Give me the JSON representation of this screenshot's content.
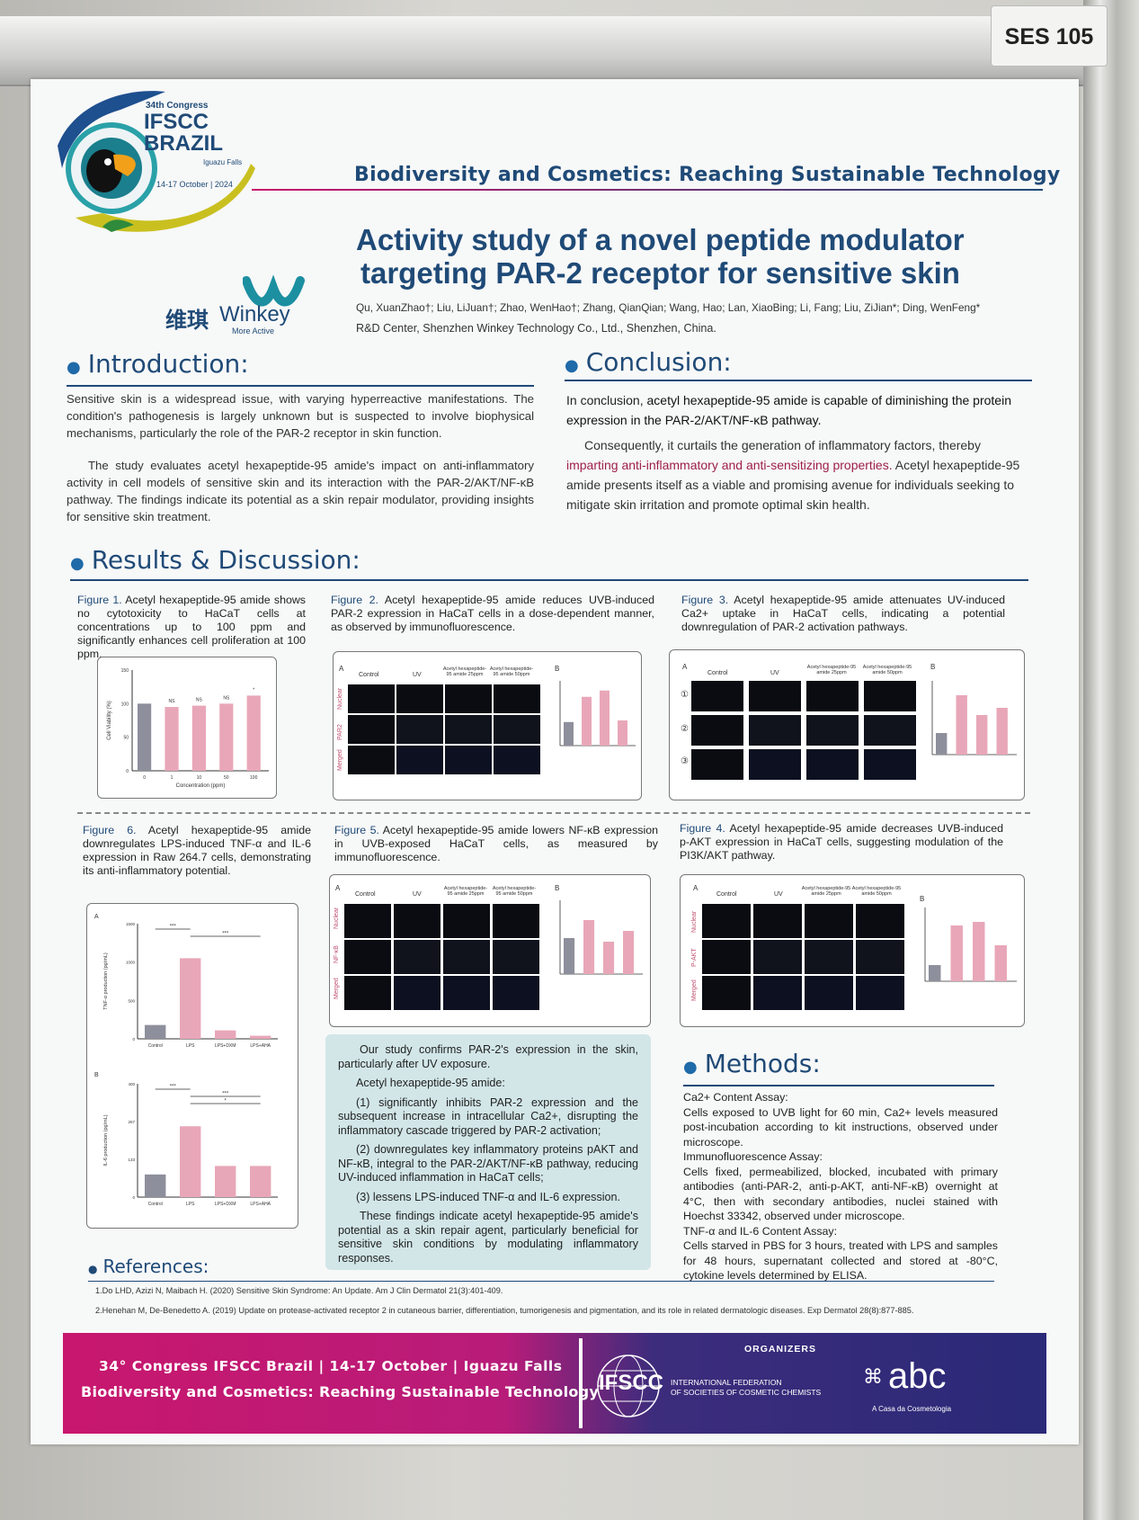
{
  "booth": {
    "tag": "SES 105"
  },
  "logo": {
    "congress": "34th Congress",
    "ifscc": "IFSCC",
    "brazil": "BRAZIL",
    "place": "Iguazu Falls",
    "dates": "14-17 October | 2024"
  },
  "sponsor": {
    "cn": "维琪",
    "name": "Winkey",
    "tagline": "More Active"
  },
  "theme": "Biodiversity and Cosmetics: Reaching Sustainable Technology",
  "title_line1": "Activity study of a novel peptide modulator",
  "title_line2": "targeting PAR-2 receptor for sensitive skin",
  "authors": "Qu, XuanZhao†; Liu, LiJuan†; Zhao, WenHao†; Zhang, QianQian; Wang, Hao; Lan, XiaoBing; Li, Fang; Liu, ZiJian*; Ding, WenFeng*",
  "affiliation": "R&D Center, Shenzhen Winkey Technology Co., Ltd., Shenzhen, China.",
  "intro": {
    "heading": "Introduction:",
    "p1": "Sensitive skin is a widespread issue, with varying hyperreactive manifestations. The condition's pathogenesis is largely unknown but is suspected to involve biophysical mechanisms, particularly the role of the PAR-2 receptor in skin function.",
    "p2": "The study evaluates acetyl hexapeptide-95 amide's impact on anti-inflammatory activity in cell models of sensitive skin and its interaction with the PAR-2/AKT/NF-κB pathway. The findings indicate its potential as a skin repair modulator, providing insights for sensitive skin treatment."
  },
  "conclusion": {
    "heading": "Conclusion:",
    "p1a": "In conclusion, ",
    "p1b": "acetyl hexapeptide-95 amide is capable of diminishing the protein expression in the PAR-2/AKT/NF-κB pathway.",
    "p2a": "Consequently, it curtails the generation of inflammatory factors, thereby ",
    "p2b": "imparting anti-inflammatory and anti-sensitizing properties.",
    "p2c": " Acetyl hexapeptide-95 amide presents itself as a viable and promising avenue for individuals seeking to mitigate skin irritation and promote optimal skin health."
  },
  "results": {
    "heading": "Results & Discussion:"
  },
  "fig1": {
    "label": "Figure 1.",
    "text": " Acetyl hexapeptide-95 amide shows no cytotoxicity to HaCaT cells at concentrations up to 100 ppm and significantly enhances cell proliferation at 100 ppm."
  },
  "fig2": {
    "label": "Figure 2.",
    "text": " Acetyl hexapeptide-95 amide reduces UVB-induced PAR-2 expression in HaCaT cells in a dose-dependent manner, as observed by immunofluorescence."
  },
  "fig3": {
    "label": "Figure 3.",
    "text": " Acetyl hexapeptide-95 amide attenuates UV-induced Ca2+ uptake in HaCaT cells, indicating a potential downregulation of PAR-2 activation pathways."
  },
  "fig4": {
    "label": "Figure 4.",
    "text": " Acetyl hexapeptide-95 amide decreases UVB-induced p-AKT expression in HaCaT cells, suggesting modulation of the PI3K/AKT pathway."
  },
  "fig5": {
    "label": "Figure 5.",
    "text": " Acetyl hexapeptide-95 amide lowers NF-κB expression in UVB-exposed HaCaT cells, as measured by immunofluorescence."
  },
  "fig6": {
    "label": "Figure 6.",
    "text": " Acetyl hexapeptide-95 amide downregulates LPS-induced TNF-α and IL-6 expression in Raw 264.7 cells, demonstrating its anti-inflammatory potential."
  },
  "panels": {
    "a": "A",
    "b": "B",
    "control": "Control",
    "uv": "UV",
    "ah25": "Acetyl hexapeptide-95 amide 25ppm",
    "ah50": "Acetyl hexapeptide-95 amide 50ppm",
    "nuclear": "Nuclear",
    "par2": "PAR2",
    "merged": "Merged",
    "nfkb": "NF-κB",
    "pakt": "P-AKT",
    "r1": "①",
    "r2": "②",
    "r3": "③"
  },
  "summary": {
    "p1": "Our study confirms PAR-2's expression in the skin, particularly after UV exposure.",
    "p2": "Acetyl hexapeptide-95 amide:",
    "p3": "(1) significantly inhibits PAR-2 expression and the subsequent increase in intracellular Ca2+, disrupting the inflammatory cascade triggered by PAR-2 activation;",
    "p4": "(2) downregulates key inflammatory proteins pAKT and NF-κB, integral to the PAR-2/AKT/NF-κB pathway, reducing UV-induced inflammation in HaCaT cells;",
    "p5": "(3) lessens LPS-induced TNF-α and IL-6 expression.",
    "p6": "These findings indicate acetyl hexapeptide-95 amide's potential as a skin repair agent, particularly beneficial for sensitive skin conditions by modulating inflammatory responses."
  },
  "methods": {
    "heading": "Methods:",
    "h1": "Ca2+ Content Assay:",
    "t1": "Cells exposed to UVB light for 60 min, Ca2+ levels measured post-incubation according to kit instructions, observed under microscope.",
    "h2": "Immunofluorescence Assay:",
    "t2": "Cells fixed, permeabilized, blocked, incubated with primary antibodies (anti-PAR-2, anti-p-AKT, anti-NF-κB) overnight at 4°C, then with secondary antibodies, nuclei stained with Hoechst 33342, observed under microscope.",
    "h3": "TNF-α and IL-6 Content Assay:",
    "t3": "Cells starved in PBS for 3 hours, treated with LPS and samples for 48 hours, supernatant collected and stored at -80°C, cytokine levels determined by ELISA."
  },
  "references": {
    "heading": "References:",
    "r1": "1.Do LHD, Azizi N, Maibach H. (2020) Sensitive Skin Syndrome: An Update. Am J Clin Dermatol 21(3):401-409.",
    "r2": "2.Henehan M, De-Benedetto A. (2019) Update on protease-activated receptor 2 in cutaneous barrier, differentiation, tumorigenesis and pigmentation, and its role in related dermatologic diseases. Exp Dermatol 28(8):877-885."
  },
  "footer": {
    "line1": "34° Congress IFSCC Brazil | 14-17 October | Iguazu Falls",
    "line2": "Biodiversity and Cosmetics: Reaching Sustainable Technology",
    "organizers": "ORGANIZERS",
    "ifscc": "IFSCC",
    "fed1": "INTERNATIONAL FEDERATION",
    "fed2": "OF SOCIETIES OF COSMETIC CHEMISTS",
    "abc": "abc",
    "abc_sub": "A Casa da Cosmetologia"
  },
  "chart_data": [
    {
      "type": "bar",
      "name": "Figure 1",
      "ylabel": "Cell Viability (%)",
      "xlabel": "Concentration (ppm)",
      "categories": [
        "0",
        "1",
        "10",
        "50",
        "100"
      ],
      "values": [
        100,
        95,
        97,
        100,
        112
      ],
      "annotations": [
        "NS",
        "NS",
        "NS",
        "*"
      ],
      "ylim": [
        0,
        150
      ]
    },
    {
      "type": "bar",
      "name": "Figure 6A",
      "ylabel": "TNF-α production (pg/mL)",
      "categories": [
        "Control",
        "LPS",
        "LPS+DXM",
        "LPS+AHA"
      ],
      "values": [
        180,
        1050,
        110,
        40
      ],
      "ylim": [
        0,
        1500
      ],
      "annotations": [
        "***",
        "***"
      ]
    },
    {
      "type": "bar",
      "name": "Figure 6B",
      "ylabel": "IL-6 production (pg/mL)",
      "categories": [
        "Control",
        "LPS",
        "LPS+DXM",
        "LPS+AHA"
      ],
      "values": [
        80,
        250,
        110,
        110
      ],
      "ylim": [
        0,
        400
      ],
      "annotations": [
        "***",
        "***",
        "*"
      ]
    }
  ]
}
